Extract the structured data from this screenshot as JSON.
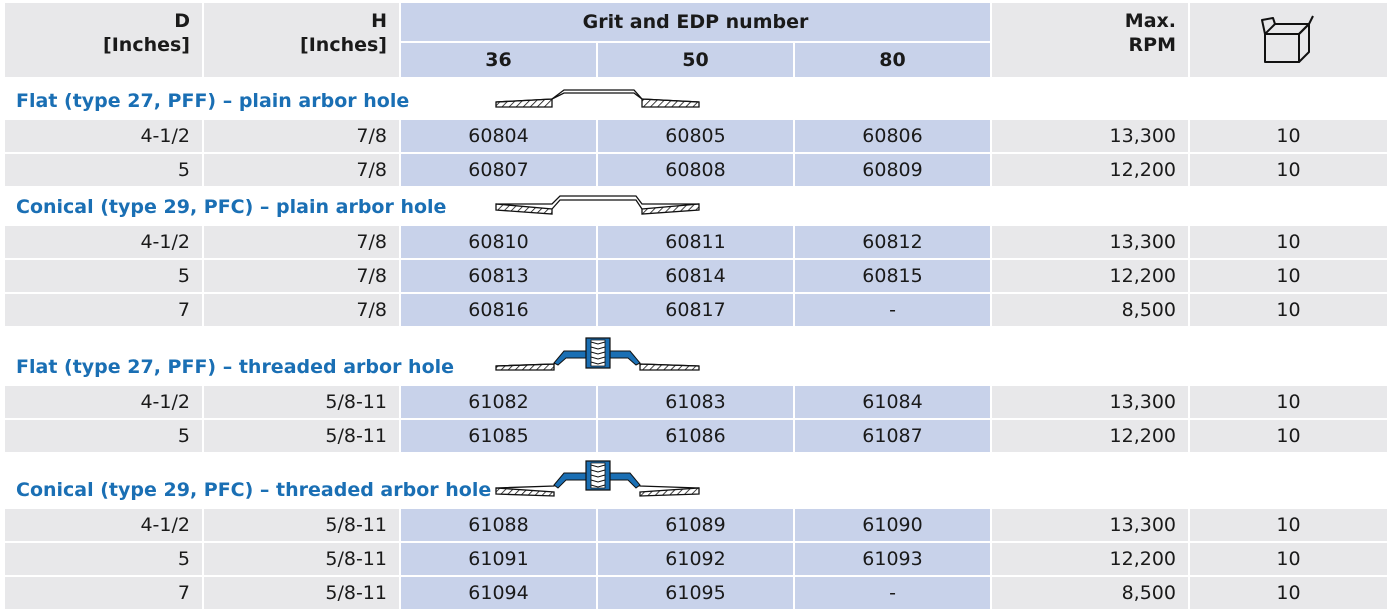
{
  "header": {
    "d_label": "D",
    "d_unit": "[Inches]",
    "h_label": "H",
    "h_unit": "[Inches]",
    "grit_title": "Grit and EDP number",
    "grit_36": "36",
    "grit_50": "50",
    "grit_80": "80",
    "rpm_line1": "Max.",
    "rpm_line2": "RPM",
    "box_icon": "package-box-icon"
  },
  "sections": [
    {
      "title": "Flat (type 27, PFF) – plain arbor hole",
      "diagram": "flat-plain-disc-icon",
      "rows": [
        {
          "d": "4-1/2",
          "h": "7/8",
          "g36": "60804",
          "g50": "60805",
          "g80": "60806",
          "rpm": "13,300",
          "qty": "10"
        },
        {
          "d": "5",
          "h": "7/8",
          "g36": "60807",
          "g50": "60808",
          "g80": "60809",
          "rpm": "12,200",
          "qty": "10"
        }
      ]
    },
    {
      "title": "Conical (type 29, PFC) – plain arbor hole",
      "diagram": "conical-plain-disc-icon",
      "rows": [
        {
          "d": "4-1/2",
          "h": "7/8",
          "g36": "60810",
          "g50": "60811",
          "g80": "60812",
          "rpm": "13,300",
          "qty": "10"
        },
        {
          "d": "5",
          "h": "7/8",
          "g36": "60813",
          "g50": "60814",
          "g80": "60815",
          "rpm": "12,200",
          "qty": "10"
        },
        {
          "d": "7",
          "h": "7/8",
          "g36": "60816",
          "g50": "60817",
          "g80": "-",
          "rpm": "8,500",
          "qty": "10"
        }
      ]
    },
    {
      "title": "Flat (type 27, PFF) – threaded arbor hole",
      "diagram": "flat-threaded-disc-icon",
      "rows": [
        {
          "d": "4-1/2",
          "h": "5/8-11",
          "g36": "61082",
          "g50": "61083",
          "g80": "61084",
          "rpm": "13,300",
          "qty": "10"
        },
        {
          "d": "5",
          "h": "5/8-11",
          "g36": "61085",
          "g50": "61086",
          "g80": "61087",
          "rpm": "12,200",
          "qty": "10"
        }
      ]
    },
    {
      "title": "Conical (type 29, PFC) – threaded arbor hole",
      "diagram": "conical-threaded-disc-icon",
      "rows": [
        {
          "d": "4-1/2",
          "h": "5/8-11",
          "g36": "61088",
          "g50": "61089",
          "g80": "61090",
          "rpm": "13,300",
          "qty": "10"
        },
        {
          "d": "5",
          "h": "5/8-11",
          "g36": "61091",
          "g50": "61092",
          "g80": "61093",
          "rpm": "12,200",
          "qty": "10"
        },
        {
          "d": "7",
          "h": "5/8-11",
          "g36": "61094",
          "g50": "61095",
          "g80": "-",
          "rpm": "8,500",
          "qty": "10"
        }
      ]
    }
  ],
  "colors": {
    "section_title": "#1a6fb4",
    "grey_cell": "#e8e8ea",
    "blue_cell": "#c8d2ea",
    "hub_blue": "#1a6fb4"
  }
}
